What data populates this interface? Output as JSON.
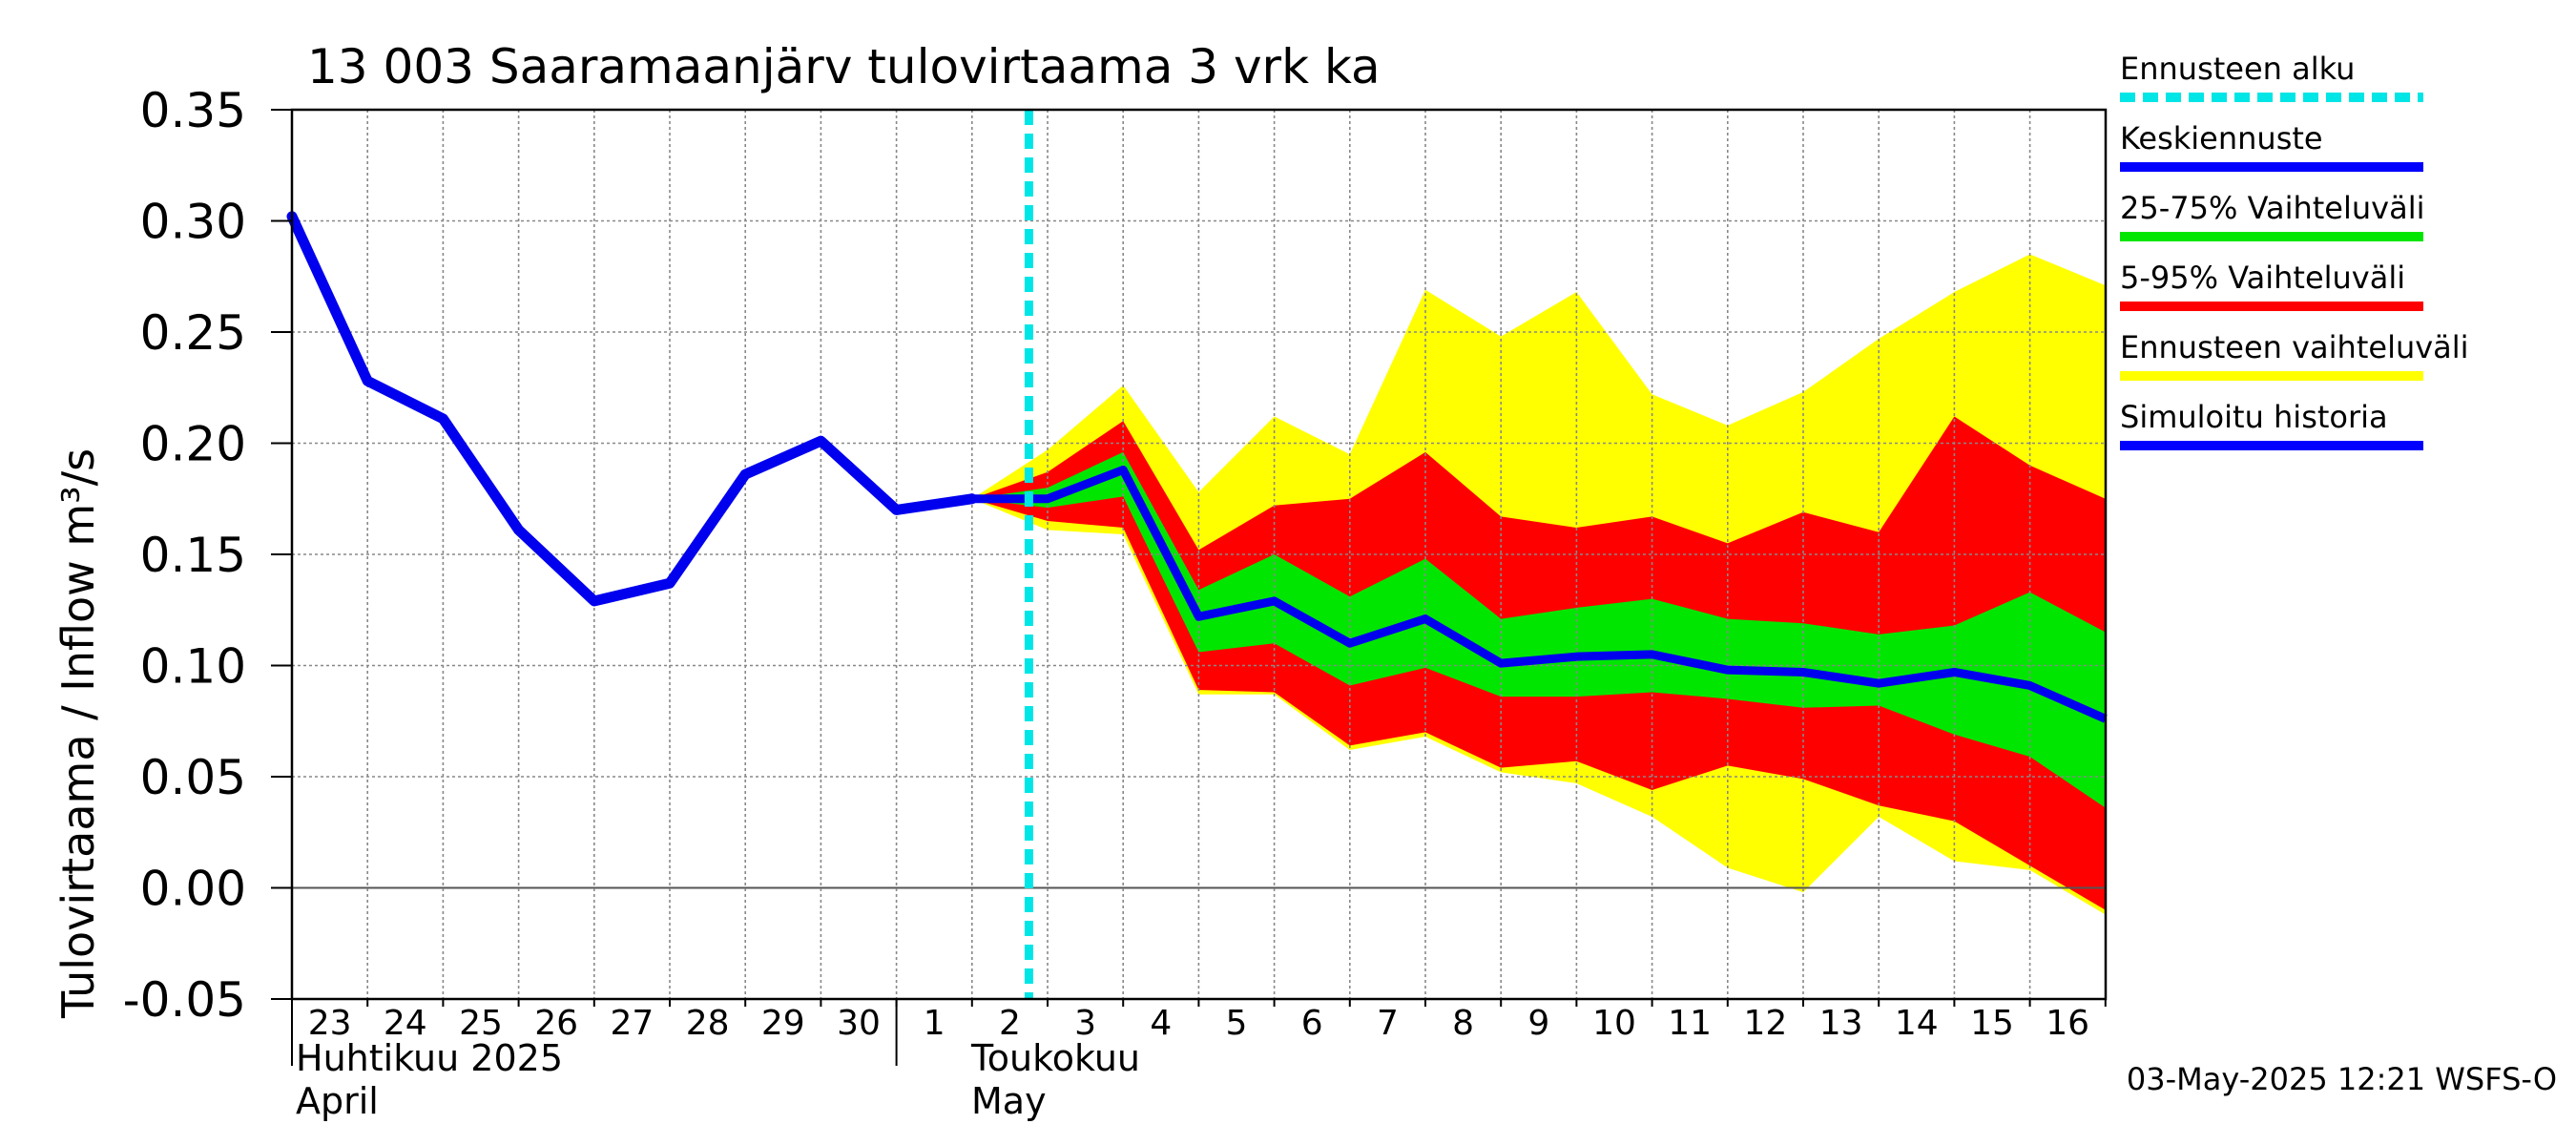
{
  "chart_data": {
    "type": "area",
    "title": "13 003 Saaramaanjärv tulovirtaama 3 vrk ka",
    "ylabel": "Tulovirtaama / Inflow    m³/s",
    "ylim": [
      -0.05,
      0.35
    ],
    "yticks": [
      "-0.05",
      "0.00",
      "0.05",
      "0.10",
      "0.15",
      "0.20",
      "0.25",
      "0.30",
      "0.35"
    ],
    "ytick_values": [
      -0.05,
      0.0,
      0.05,
      0.1,
      0.15,
      0.2,
      0.25,
      0.3,
      0.35
    ],
    "x_start": "2025-04-23",
    "x_end": "2025-05-16",
    "xtick_labels": [
      "23",
      "24",
      "25",
      "26",
      "27",
      "28",
      "29",
      "30",
      "1",
      "2",
      "3",
      "4",
      "5",
      "6",
      "7",
      "8",
      "9",
      "10",
      "11",
      "12",
      "13",
      "14",
      "15",
      "16"
    ],
    "month_labels": [
      {
        "fi": "Huhtikuu  2025",
        "en": "April"
      },
      {
        "fi": "Toukokuu",
        "en": "May"
      }
    ],
    "forecast_start": "2025-05-03",
    "grid": true,
    "footer": "03-May-2025 12:21 WSFS-O",
    "legend": [
      {
        "label": "Ennusteen alku",
        "color": "#00e5e5",
        "style": "dashed"
      },
      {
        "label": "Keskiennuste",
        "color": "#0000ff",
        "style": "solid"
      },
      {
        "label": "25-75% Vaihteluväli",
        "color": "#00e600",
        "style": "solid"
      },
      {
        "label": "5-95% Vaihteluväli",
        "color": "#ff0000",
        "style": "solid"
      },
      {
        "label": "Ennusteen vaihteluväli",
        "color": "#ffff00",
        "style": "solid"
      },
      {
        "label": "Simuloitu historia",
        "color": "#0000ff",
        "style": "solid"
      }
    ],
    "history": {
      "name": "Simuloitu historia",
      "x": [
        "2025-04-23",
        "2025-04-24",
        "2025-04-25",
        "2025-04-26",
        "2025-04-27",
        "2025-04-28",
        "2025-04-29",
        "2025-04-30",
        "2025-05-01",
        "2025-05-02"
      ],
      "y": [
        0.302,
        0.228,
        0.211,
        0.161,
        0.129,
        0.137,
        0.186,
        0.201,
        0.17,
        0.175
      ]
    },
    "forecast_x": [
      "2025-05-02",
      "2025-05-03",
      "2025-05-04",
      "2025-05-05",
      "2025-05-06",
      "2025-05-07",
      "2025-05-08",
      "2025-05-09",
      "2025-05-10",
      "2025-05-11",
      "2025-05-12",
      "2025-05-13",
      "2025-05-14",
      "2025-05-15",
      "2025-05-16",
      "2025-05-17"
    ],
    "bands": [
      {
        "name": "Ennusteen vaihteluväli",
        "color": "#ffff00",
        "upper": [
          0.175,
          0.197,
          0.226,
          0.178,
          0.212,
          0.195,
          0.269,
          0.248,
          0.268,
          0.222,
          0.208,
          0.223,
          0.247,
          0.268,
          0.285,
          0.271
        ],
        "lower": [
          0.175,
          0.161,
          0.159,
          0.087,
          0.087,
          0.062,
          0.068,
          0.052,
          0.047,
          0.032,
          0.009,
          -0.002,
          0.032,
          0.012,
          0.008,
          -0.012
        ]
      },
      {
        "name": "5-95% Vaihteluväli",
        "color": "#ff0000",
        "upper": [
          0.175,
          0.187,
          0.21,
          0.152,
          0.172,
          0.175,
          0.196,
          0.167,
          0.162,
          0.167,
          0.155,
          0.169,
          0.16,
          0.212,
          0.19,
          0.175
        ],
        "lower": [
          0.175,
          0.165,
          0.162,
          0.089,
          0.088,
          0.064,
          0.07,
          0.054,
          0.057,
          0.044,
          0.055,
          0.049,
          0.037,
          0.03,
          0.01,
          -0.01
        ]
      },
      {
        "name": "25-75% Vaihteluväli",
        "color": "#00e600",
        "upper": [
          0.175,
          0.18,
          0.196,
          0.134,
          0.15,
          0.131,
          0.148,
          0.121,
          0.126,
          0.13,
          0.121,
          0.119,
          0.114,
          0.118,
          0.133,
          0.115
        ],
        "lower": [
          0.175,
          0.171,
          0.176,
          0.106,
          0.11,
          0.091,
          0.099,
          0.086,
          0.086,
          0.088,
          0.085,
          0.081,
          0.082,
          0.069,
          0.059,
          0.036
        ]
      }
    ],
    "median": {
      "name": "Keskiennuste",
      "y": [
        0.175,
        0.175,
        0.188,
        0.122,
        0.129,
        0.11,
        0.121,
        0.101,
        0.104,
        0.105,
        0.098,
        0.097,
        0.092,
        0.097,
        0.091,
        0.076
      ]
    }
  }
}
